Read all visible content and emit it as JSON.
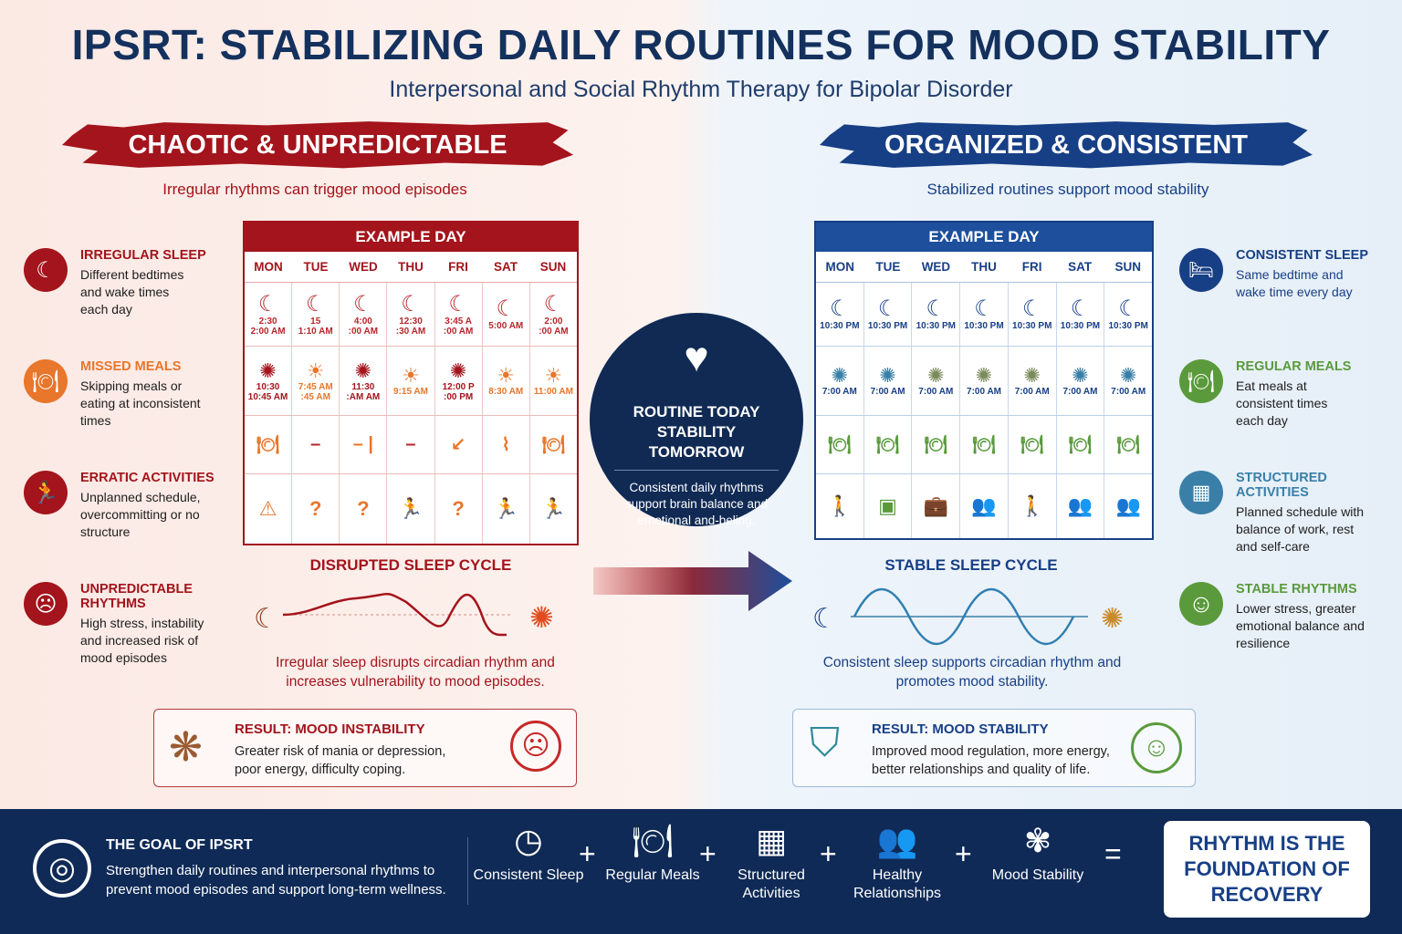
{
  "header": {
    "title": "IPSRT: STABILIZING DAILY ROUTINES FOR MOOD STABILITY",
    "subtitle": "Interpersonal and Social Rhythm Therapy for Bipolar Disorder"
  },
  "colors": {
    "red": "#a3141c",
    "navy": "#102a54",
    "blue": "#173f86",
    "orange": "#e8762b",
    "green": "#5a9a3c",
    "teal": "#3a7fa8"
  },
  "left": {
    "banner": "CHAOTIC & UNPREDICTABLE",
    "lead": "Irregular rhythms can trigger mood episodes",
    "items": [
      {
        "title": "IRREGULAR SLEEP",
        "desc": "Different bedtimes and wake times each day",
        "icon": "moon-icon"
      },
      {
        "title": "MISSED MEALS",
        "desc": "Skipping meals or eating at inconsistent times",
        "icon": "plate-icon"
      },
      {
        "title": "ERRATIC ACTIVITIES",
        "desc": "Unplanned schedule, overcommitting or no structure",
        "icon": "runner-icon"
      },
      {
        "title": "UNPREDICTABLE RHYTHMS",
        "desc": "High stress, instability and increased risk of mood episodes",
        "icon": "stressed-face-icon"
      }
    ],
    "calendar": {
      "title": "EXAMPLE DAY",
      "days": [
        "MON",
        "TUE",
        "WED",
        "THU",
        "FRI",
        "SAT",
        "SUN"
      ],
      "sleep": [
        "2:30\n2:00 AM",
        "15\n1:10 AM",
        "4:00\n:00 AM",
        "12:30\n:30 AM",
        "3:45 A\n:00 AM",
        "5:00 AM",
        "2:00\n:00 AM"
      ],
      "wake": [
        "10:30\n10:45 AM",
        "7:45 AM\n:45 AM",
        "11:30\n:AM AM",
        "9:15 AM",
        "12:00 P\n:00 PM",
        "8:30 AM",
        "11:00 AM"
      ],
      "meals": [
        "🍽",
        "–",
        "– |",
        "–",
        "↙",
        "⌇",
        "🍽"
      ],
      "activities": [
        "⚠",
        "?",
        "?",
        "🏃",
        "?",
        "🏃",
        "🏃"
      ]
    },
    "cycle_title": "DISRUPTED SLEEP CYCLE",
    "note": "Irregular sleep disrupts circadian rhythm and increases vulnerability to mood episodes.",
    "result_title": "RESULT: MOOD INSTABILITY",
    "result_desc": "Greater risk of mania or depression, poor energy, difficulty coping."
  },
  "center": {
    "title": "ROUTINE TODAY STABILITY TOMORROW",
    "desc": "Consistent daily rhythms support brain balance and emotional and-beling."
  },
  "right": {
    "banner": "ORGANIZED & CONSISTENT",
    "lead": "Stabilized routines support mood stability",
    "items": [
      {
        "title": "CONSISTENT SLEEP",
        "desc": "Same bedtime and wake time every day",
        "icon": "bed-icon"
      },
      {
        "title": "REGULAR MEALS",
        "desc": "Eat meals at consistent times each day",
        "icon": "plate-icon"
      },
      {
        "title": "STRUCTURED ACTIVITIES",
        "desc": "Planned schedule with balance of work, rest and self-care",
        "icon": "calendar-icon"
      },
      {
        "title": "STABLE RHYTHMS",
        "desc": "Lower stress, greater emotional balance and resilience",
        "icon": "smiley-icon"
      }
    ],
    "calendar": {
      "title": "EXAMPLE DAY",
      "days": [
        "MON",
        "TUE",
        "WED",
        "THU",
        "FRI",
        "SAT",
        "SUN"
      ],
      "sleep": [
        "10:30 PM",
        "10:30 PM",
        "10:30 PM",
        "10:30 PM",
        "10:30 PM",
        "10:30 PM",
        "10:30 PM"
      ],
      "wake": [
        "7:00 AM",
        "7:00 AM",
        "7:00 AM",
        "7:00 AM",
        "7:00 AM",
        "7:00 AM",
        "7:00 AM"
      ],
      "activities": [
        "🚶",
        "▣",
        "💼",
        "👥",
        "🚶",
        "👥",
        "👥"
      ]
    },
    "cycle_title": "STABLE SLEEP CYCLE",
    "note": "Consistent sleep supports circadian rhythm and promotes mood stability.",
    "result_title": "RESULT: MOOD STABILITY",
    "result_desc": "Improved mood regulation, more energy, better relationships and quality of life."
  },
  "footer": {
    "goal_title": "THE GOAL OF IPSRT",
    "goal_desc": "Strengthen daily routines and interpersonal rhythms to prevent mood episodes and support long-term wellness.",
    "items": [
      {
        "label": "Consistent Sleep",
        "icon": "clock-icon"
      },
      {
        "label": "Regular Meals",
        "icon": "plate-icon"
      },
      {
        "label": "Structured Activities",
        "icon": "calendar-icon"
      },
      {
        "label": "Healthy Relationships",
        "icon": "people-icon"
      },
      {
        "label": "Mood Stability",
        "icon": "brain-icon"
      }
    ],
    "badge": "RHYTHM IS THE FOUNDATION OF RECOVERY"
  }
}
